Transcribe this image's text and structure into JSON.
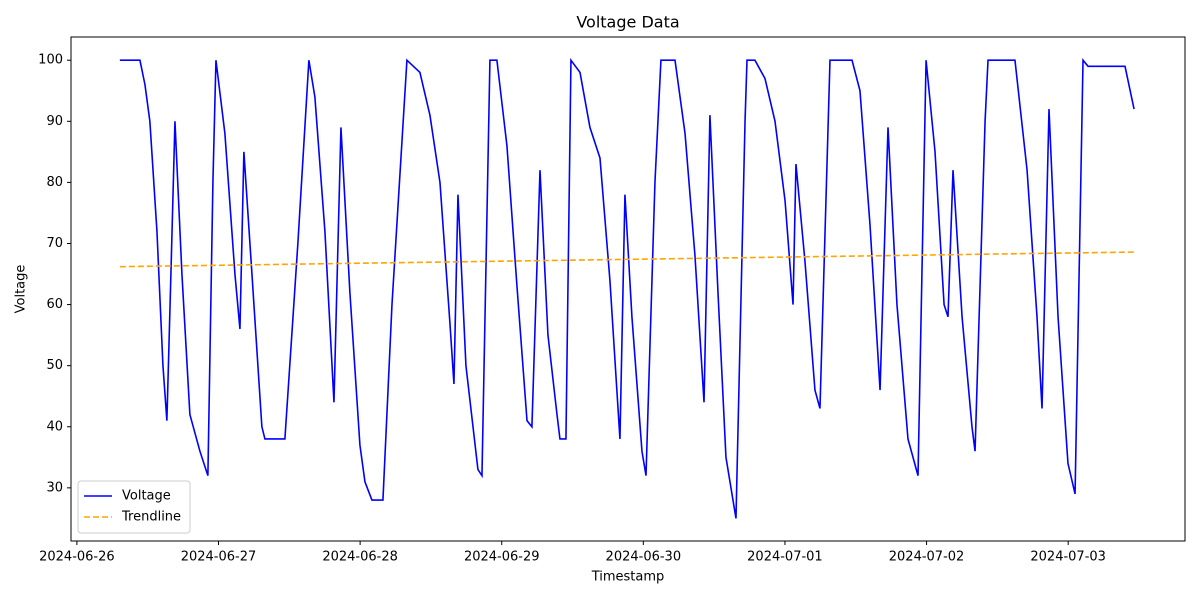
{
  "chart_data": {
    "type": "line",
    "title": "Voltage Data",
    "x_label": "Timestamp",
    "y_label": "Voltage",
    "xlim": [
      "2024-06-25 23:00",
      "2024-07-03 19:48"
    ],
    "xticks": [
      "2024-06-26",
      "2024-06-27",
      "2024-06-28",
      "2024-06-29",
      "2024-06-30",
      "2024-07-01",
      "2024-07-02",
      "2024-07-03"
    ],
    "ylim": [
      21.3,
      103.8
    ],
    "yticks": [
      30,
      40,
      50,
      60,
      70,
      80,
      90,
      100
    ],
    "legend": "lower left",
    "series": [
      {
        "name": "Voltage",
        "color": "#0000ff",
        "linestyle": "solid",
        "x": [
          "2024-06-26 07:17",
          "2024-06-26 10:41",
          "2024-06-26 11:32",
          "2024-06-26 12:22",
          "2024-06-26 13:34",
          "2024-06-26 14:35",
          "2024-06-26 15:15",
          "2024-06-26 15:56",
          "2024-06-26 16:37",
          "2024-06-26 17:48",
          "2024-06-26 19:09",
          "2024-06-26 20:51",
          "2024-06-26 22:12",
          "2024-06-26 23:03",
          "2024-06-26 23:34",
          "2024-06-27 01:05",
          "2024-06-27 02:47",
          "2024-06-27 03:38",
          "2024-06-27 04:18",
          "2024-06-27 05:40",
          "2024-06-27 07:21",
          "2024-06-27 07:52",
          "2024-06-27 11:15",
          "2024-06-27 13:27",
          "2024-06-27 15:19",
          "2024-06-27 16:20",
          "2024-06-27 18:02",
          "2024-06-27 19:34",
          "2024-06-27 20:45",
          "2024-06-27 22:16",
          "2024-06-27 23:58",
          "2024-06-28 00:49",
          "2024-06-28 02:00",
          "2024-06-28 03:52",
          "2024-06-28 05:24",
          "2024-06-28 07:56",
          "2024-06-28 10:08",
          "2024-06-28 11:50",
          "2024-06-28 13:32",
          "2024-06-28 15:13",
          "2024-06-28 15:54",
          "2024-06-28 16:35",
          "2024-06-28 17:56",
          "2024-06-28 19:58",
          "2024-06-28 20:39",
          "2024-06-28 22:00",
          "2024-06-28 23:11",
          "2024-06-29 00:53",
          "2024-06-29 02:35",
          "2024-06-29 04:17",
          "2024-06-29 05:07",
          "2024-06-29 06:29",
          "2024-06-29 07:50",
          "2024-06-29 09:22",
          "2024-06-29 09:52",
          "2024-06-29 10:53",
          "2024-06-29 11:44",
          "2024-06-29 13:16",
          "2024-06-29 14:57",
          "2024-06-29 16:39",
          "2024-06-29 18:20",
          "2024-06-29 20:02",
          "2024-06-29 20:53",
          "2024-06-29 22:04",
          "2024-06-29 23:46",
          "2024-06-30 00:27",
          "2024-06-30 01:58",
          "2024-06-30 02:59",
          "2024-06-30 05:22",
          "2024-06-30 07:04",
          "2024-06-30 08:45",
          "2024-06-30 10:17",
          "2024-06-30 11:17",
          "2024-06-30 12:39",
          "2024-06-30 14:00",
          "2024-06-30 15:42",
          "2024-06-30 17:14",
          "2024-06-30 17:34",
          "2024-06-30 18:55",
          "2024-06-30 20:37",
          "2024-06-30 22:19",
          "2024-07-01 00:01",
          "2024-07-01 01:22",
          "2024-07-01 01:52",
          "2024-07-01 03:24",
          "2024-07-01 05:05",
          "2024-07-01 05:56",
          "2024-07-01 07:38",
          "2024-07-01 11:22",
          "2024-07-01 12:43",
          "2024-07-01 14:25",
          "2024-07-01 16:07",
          "2024-07-01 17:28",
          "2024-07-01 18:59",
          "2024-07-01 20:51",
          "2024-07-01 22:33",
          "2024-07-01 23:55",
          "2024-07-02 01:26",
          "2024-07-02 02:58",
          "2024-07-02 03:38",
          "2024-07-02 04:29",
          "2024-07-02 06:01",
          "2024-07-02 07:42",
          "2024-07-02 08:13",
          "2024-07-02 09:55",
          "2024-07-02 10:25",
          "2024-07-02 14:59",
          "2024-07-02 17:02",
          "2024-07-02 18:43",
          "2024-07-02 19:34",
          "2024-07-02 20:45",
          "2024-07-02 22:17",
          "2024-07-02 23:58",
          "2024-07-03 01:10",
          "2024-07-03 02:31",
          "2024-07-03 03:22",
          "2024-07-03 09:38",
          "2024-07-03 11:10"
        ],
        "values": [
          100,
          100,
          96,
          90,
          72,
          50,
          41,
          65,
          90,
          65,
          42,
          36,
          32,
          80,
          100,
          88,
          65,
          56,
          85,
          65,
          40,
          38,
          38,
          70,
          100,
          94,
          72,
          44,
          89,
          62,
          37,
          31,
          28,
          28,
          60,
          100,
          98,
          91,
          80,
          57,
          47,
          78,
          50,
          33,
          32,
          100,
          100,
          86,
          63,
          41,
          40,
          82,
          55,
          42,
          38,
          38,
          100,
          98,
          89,
          84,
          64,
          38,
          78,
          58,
          36,
          32,
          80,
          100,
          100,
          88,
          68,
          44,
          91,
          62,
          35,
          25,
          90,
          100,
          100,
          97,
          90,
          77,
          60,
          83,
          67,
          46,
          43,
          100,
          100,
          95,
          73,
          46,
          89,
          60,
          38,
          32,
          100,
          85,
          60,
          58,
          82,
          58,
          40,
          36,
          90,
          100,
          100,
          82,
          58,
          43,
          92,
          58,
          34,
          29,
          100,
          99,
          99,
          92
        ]
      },
      {
        "name": "Trendline",
        "color": "#ffa500",
        "linestyle": "dashed",
        "x": [
          "2024-06-26 07:17",
          "2024-07-03 11:10"
        ],
        "values": [
          66.2,
          68.6
        ]
      }
    ]
  }
}
